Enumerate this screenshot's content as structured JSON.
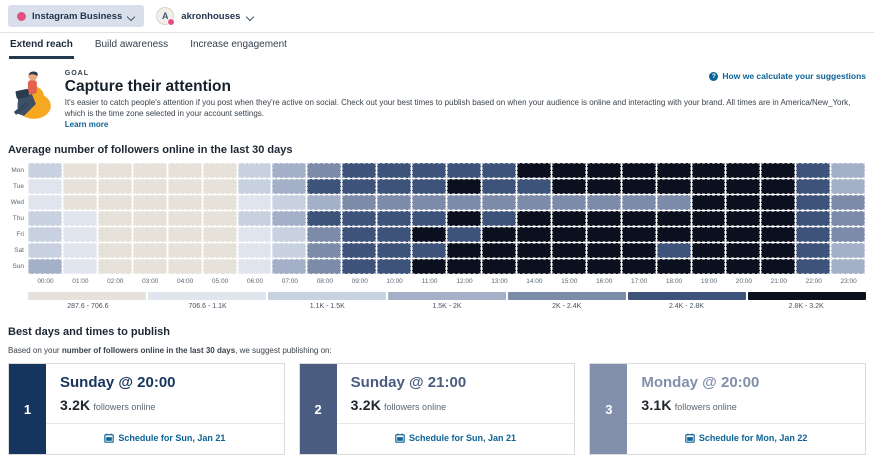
{
  "topbar": {
    "network_label": "Instagram Business",
    "account_name": "akronhouses",
    "avatar_initial": "A",
    "brand_dot_color": "#e44f82"
  },
  "tabs": {
    "items": [
      {
        "label": "Extend reach",
        "active": true
      },
      {
        "label": "Build awareness",
        "active": false
      },
      {
        "label": "Increase engagement",
        "active": false
      }
    ]
  },
  "goal": {
    "eyebrow": "GOAL",
    "title": "Capture their attention",
    "description": "It's easier to catch people's attention if you post when they're active on social. Check out your best times to publish based on when your audience is online and interacting with your brand. All times are in America/New_York, which is the time zone selected in your account settings.",
    "learn_more_label": "Learn more",
    "help_link_label": "How we calculate your suggestions"
  },
  "heatmap": {
    "title": "Average number of followers online in the last 30 days",
    "days": [
      "Mon",
      "Tue",
      "Wed",
      "Thu",
      "Fri",
      "Sat",
      "Sun"
    ],
    "hours": [
      "00:00",
      "01:00",
      "02:00",
      "03:00",
      "04:00",
      "05:00",
      "06:00",
      "07:00",
      "08:00",
      "09:00",
      "10:00",
      "11:00",
      "12:00",
      "13:00",
      "14:00",
      "15:00",
      "16:00",
      "17:00",
      "18:00",
      "19:00",
      "20:00",
      "21:00",
      "22:00",
      "23:00"
    ],
    "palette": [
      "#e6e1d9",
      "#dfe4ed",
      "#c7d1e0",
      "#a3b0c8",
      "#7c8ba8",
      "#3e537a",
      "#0b101e"
    ],
    "legend_labels": [
      "287.6 - 706.6",
      "706.6 - 1.1K",
      "1.1K - 1.5K",
      "1.5K - 2K",
      "2K - 2.4K",
      "2.4K - 2.8K",
      "2.8K - 3.2K"
    ]
  },
  "chart_data": {
    "type": "heatmap",
    "title": "Average number of followers online in the last 30 days",
    "rows": [
      "Mon",
      "Tue",
      "Wed",
      "Thu",
      "Fri",
      "Sat",
      "Sun"
    ],
    "columns": [
      "00:00",
      "01:00",
      "02:00",
      "03:00",
      "04:00",
      "05:00",
      "06:00",
      "07:00",
      "08:00",
      "09:00",
      "10:00",
      "11:00",
      "12:00",
      "13:00",
      "14:00",
      "15:00",
      "16:00",
      "17:00",
      "18:00",
      "19:00",
      "20:00",
      "21:00",
      "22:00",
      "23:00"
    ],
    "legend_bins": [
      "287.6 - 706.6",
      "706.6 - 1.1K",
      "1.1K - 1.5K",
      "1.5K - 2K",
      "2K - 2.4K",
      "2.4K - 2.8K",
      "2.8K - 3.2K"
    ],
    "values_are_bin_levels_1_to_7": true,
    "matrix": [
      [
        3,
        1,
        1,
        1,
        1,
        1,
        3,
        4,
        5,
        6,
        6,
        6,
        6,
        6,
        7,
        7,
        7,
        7,
        7,
        7,
        7,
        7,
        6,
        4
      ],
      [
        2,
        1,
        1,
        1,
        1,
        1,
        3,
        4,
        6,
        6,
        6,
        6,
        7,
        6,
        6,
        7,
        7,
        7,
        7,
        7,
        7,
        7,
        6,
        4
      ],
      [
        2,
        1,
        1,
        1,
        1,
        1,
        2,
        3,
        4,
        5,
        5,
        5,
        5,
        5,
        5,
        5,
        5,
        5,
        5,
        7,
        7,
        7,
        6,
        5
      ],
      [
        3,
        2,
        1,
        1,
        1,
        1,
        3,
        4,
        6,
        6,
        6,
        6,
        7,
        6,
        7,
        7,
        7,
        7,
        7,
        7,
        7,
        7,
        6,
        5
      ],
      [
        3,
        2,
        1,
        1,
        1,
        1,
        2,
        3,
        5,
        6,
        6,
        7,
        6,
        7,
        7,
        7,
        7,
        7,
        7,
        7,
        7,
        7,
        6,
        5
      ],
      [
        3,
        2,
        1,
        1,
        1,
        1,
        2,
        3,
        5,
        6,
        6,
        6,
        7,
        7,
        7,
        7,
        7,
        7,
        6,
        7,
        7,
        7,
        6,
        4
      ],
      [
        4,
        2,
        1,
        1,
        1,
        1,
        2,
        4,
        5,
        6,
        6,
        7,
        7,
        7,
        7,
        7,
        7,
        7,
        7,
        7,
        7,
        7,
        6,
        4
      ]
    ]
  },
  "best": {
    "heading": "Best days and times to publish",
    "intro_prefix": "Based on your ",
    "intro_bold": "number of followers online in the last 30 days",
    "intro_suffix": ", we suggest publishing on:",
    "followers_label": "followers online",
    "cards": [
      {
        "rank": "1",
        "when": "Sunday @ 20:00",
        "count": "3.2K",
        "schedule_label": "Schedule for Sun, Jan 21",
        "accent": "#16355e"
      },
      {
        "rank": "2",
        "when": "Sunday @ 21:00",
        "count": "3.2K",
        "schedule_label": "Schedule for Sun, Jan 21",
        "accent": "#4a5d80"
      },
      {
        "rank": "3",
        "when": "Monday @ 20:00",
        "count": "3.1K",
        "schedule_label": "Schedule for Mon, Jan 22",
        "accent": "#8290ab"
      }
    ]
  }
}
